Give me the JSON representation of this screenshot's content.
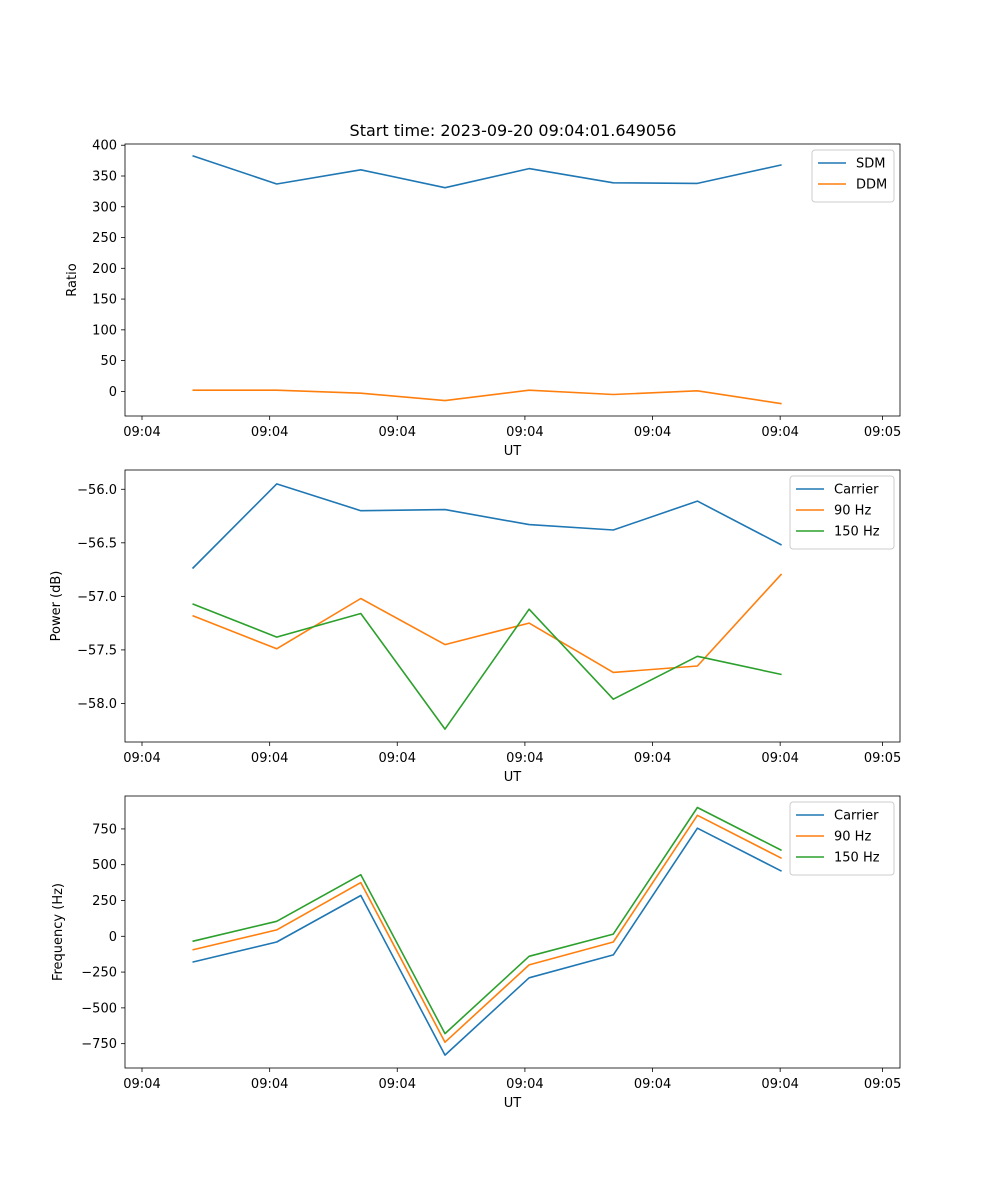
{
  "figure": {
    "title": "Start time: 2023-09-20 09:04:01.649056"
  },
  "chart_data": [
    {
      "type": "line",
      "title": "Start time: 2023-09-20 09:04:01.649056",
      "xlabel": "UT",
      "ylabel": "Ratio",
      "x": [
        1,
        2,
        3,
        4,
        5,
        6,
        7,
        8
      ],
      "xlim": [
        0.198,
        9.407
      ],
      "xticks": [
        0.4,
        1.917,
        3.433,
        4.95,
        6.467,
        7.983,
        9.2
      ],
      "xtick_labels": [
        "09:04",
        "09:04",
        "09:04",
        "09:04",
        "09:04",
        "09:04",
        "09:05"
      ],
      "ylim": [
        -40,
        402
      ],
      "yticks": [
        0,
        50,
        100,
        150,
        200,
        250,
        300,
        350,
        400
      ],
      "ytick_labels": [
        "0",
        "50",
        "100",
        "150",
        "200",
        "250",
        "300",
        "350",
        "400"
      ],
      "legend_position": "top-right",
      "series": [
        {
          "name": "SDM",
          "color": "#1f77b4",
          "values": [
            383,
            337,
            360,
            331,
            362,
            339,
            338,
            368
          ]
        },
        {
          "name": "DDM",
          "color": "#ff7f0e",
          "values": [
            2,
            2,
            -3,
            -15,
            2,
            -5,
            1,
            -20
          ]
        }
      ]
    },
    {
      "type": "line",
      "xlabel": "UT",
      "ylabel": "Power (dB)",
      "x": [
        1,
        2,
        3,
        4,
        5,
        6,
        7,
        8
      ],
      "xlim": [
        0.198,
        9.407
      ],
      "xticks": [
        0.4,
        1.917,
        3.433,
        4.95,
        6.467,
        7.983,
        9.2
      ],
      "xtick_labels": [
        "09:04",
        "09:04",
        "09:04",
        "09:04",
        "09:04",
        "09:04",
        "09:05"
      ],
      "ylim": [
        -58.36,
        -55.82
      ],
      "yticks": [
        -58.0,
        -57.5,
        -57.0,
        -56.5,
        -56.0
      ],
      "ytick_labels": [
        "−58.0",
        "−57.5",
        "−57.0",
        "−56.5",
        "−56.0"
      ],
      "legend_position": "top-right",
      "series": [
        {
          "name": "Carrier",
          "color": "#1f77b4",
          "values": [
            -56.74,
            -55.95,
            -56.2,
            -56.19,
            -56.33,
            -56.38,
            -56.11,
            -56.52
          ]
        },
        {
          "name": "90 Hz",
          "color": "#ff7f0e",
          "values": [
            -57.18,
            -57.49,
            -57.02,
            -57.45,
            -57.25,
            -57.71,
            -57.65,
            -56.79
          ]
        },
        {
          "name": "150 Hz",
          "color": "#2ca02c",
          "values": [
            -57.07,
            -57.38,
            -57.16,
            -58.24,
            -57.12,
            -57.96,
            -57.56,
            -57.73
          ]
        }
      ]
    },
    {
      "type": "line",
      "xlabel": "UT",
      "ylabel": "Frequency (Hz)",
      "x": [
        1,
        2,
        3,
        4,
        5,
        6,
        7,
        8
      ],
      "xlim": [
        0.198,
        9.407
      ],
      "xticks": [
        0.4,
        1.917,
        3.433,
        4.95,
        6.467,
        7.983,
        9.2
      ],
      "xtick_labels": [
        "09:04",
        "09:04",
        "09:04",
        "09:04",
        "09:04",
        "09:04",
        "09:05"
      ],
      "ylim": [
        -920,
        980
      ],
      "yticks": [
        -750,
        -500,
        -250,
        0,
        250,
        500,
        750
      ],
      "ytick_labels": [
        "−750",
        "−500",
        "−250",
        "0",
        "250",
        "500",
        "750"
      ],
      "legend_position": "top-right",
      "series": [
        {
          "name": "Carrier",
          "color": "#1f77b4",
          "values": [
            -180,
            -40,
            285,
            -830,
            -290,
            -130,
            755,
            455
          ]
        },
        {
          "name": "90 Hz",
          "color": "#ff7f0e",
          "values": [
            -95,
            45,
            375,
            -740,
            -200,
            -40,
            845,
            545
          ]
        },
        {
          "name": "150 Hz",
          "color": "#2ca02c",
          "values": [
            -35,
            105,
            430,
            -680,
            -140,
            15,
            900,
            600
          ]
        }
      ]
    }
  ]
}
